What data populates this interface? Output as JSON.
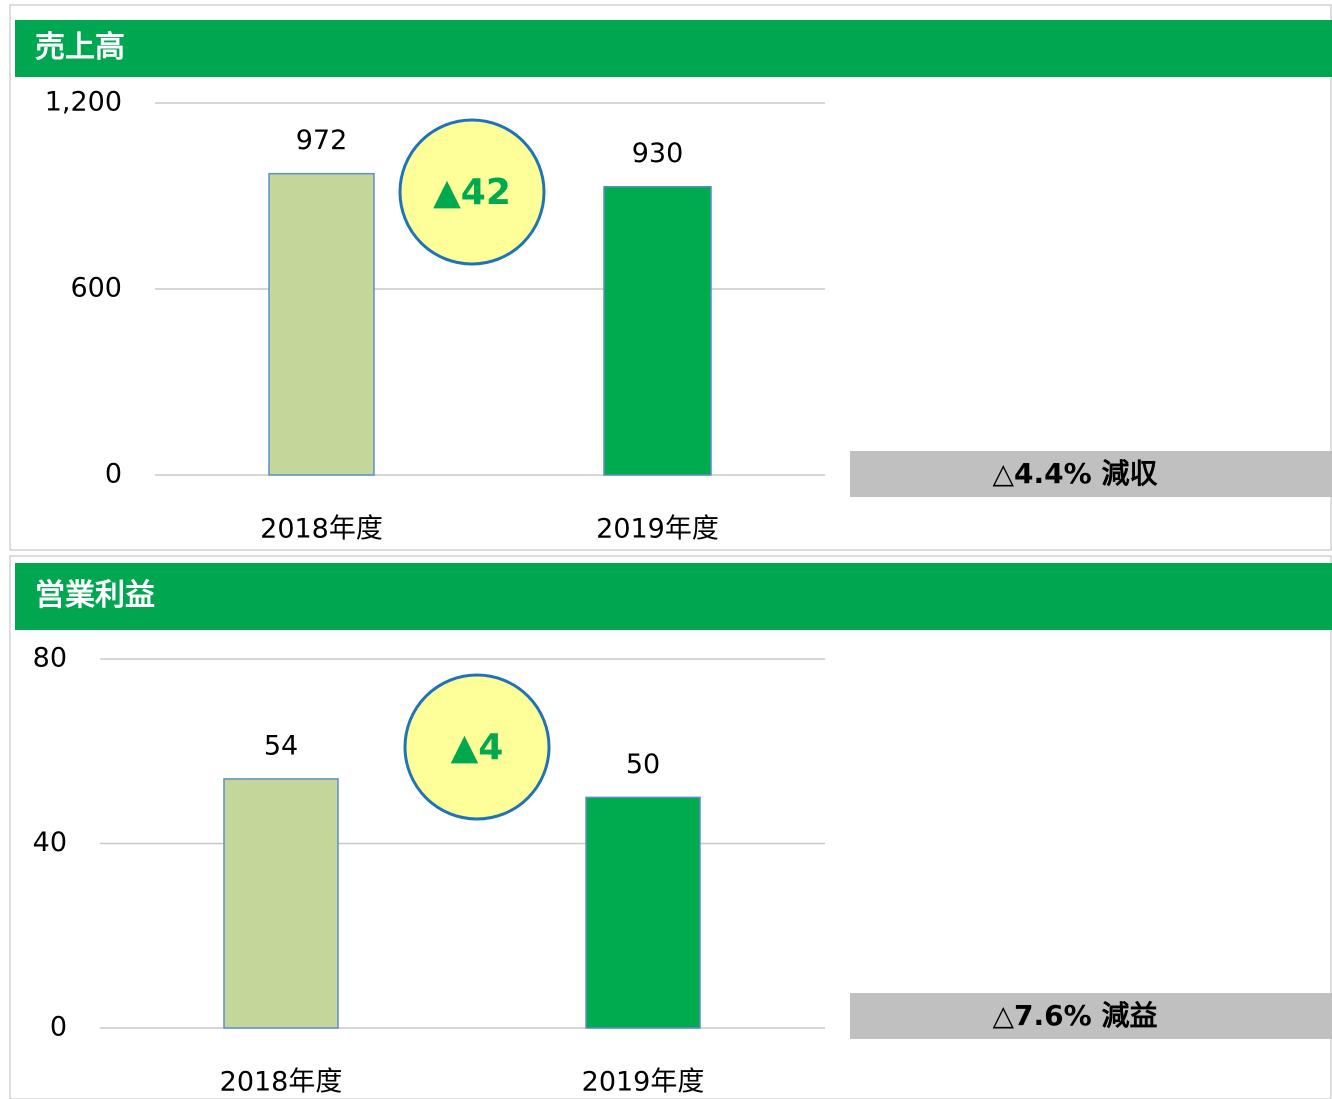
{
  "chart_data": [
    {
      "type": "bar",
      "title": "売上高",
      "categories": [
        "2018年度",
        "2019年度"
      ],
      "values": [
        972,
        930
      ],
      "colors": [
        "#c5d69b",
        "#00aa4f"
      ],
      "ylim": [
        0,
        1200
      ],
      "yticks": [
        0,
        600,
        {
          "value": 1200,
          "label": "1,200"
        }
      ],
      "grid": true,
      "annotation": "▲42",
      "note": "△4.4% 減収"
    },
    {
      "type": "bar",
      "title": "営業利益",
      "categories": [
        "2018年度",
        "2019年度"
      ],
      "values": [
        54,
        50
      ],
      "colors": [
        "#c5d69b",
        "#00aa4f"
      ],
      "ylim": [
        0,
        80
      ],
      "yticks": [
        0,
        40,
        80
      ],
      "grid": true,
      "annotation": "▲4",
      "note": "△7.6% 減益"
    }
  ]
}
